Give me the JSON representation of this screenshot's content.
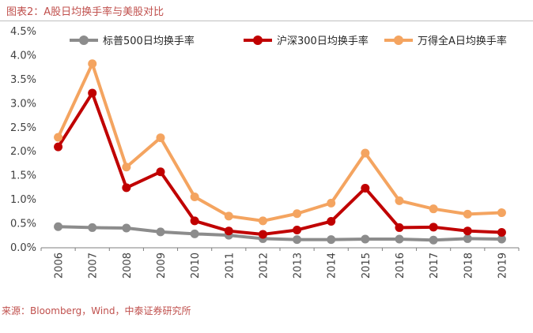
{
  "figure": {
    "title": "图表2：A股日均换手率与美股对比",
    "source": "来源：Bloomberg，Wind，中泰证券研究所"
  },
  "chart_data": {
    "type": "line",
    "title": "",
    "xlabel": "",
    "ylabel": "",
    "x": [
      "2006",
      "2007",
      "2008",
      "2009",
      "2010",
      "2011",
      "2012",
      "2013",
      "2014",
      "2015",
      "2016",
      "2017",
      "2018",
      "2019"
    ],
    "ylim": [
      0,
      4.5
    ],
    "yticks": [
      "0.0%",
      "0.5%",
      "1.0%",
      "1.5%",
      "2.0%",
      "2.5%",
      "3.0%",
      "3.5%",
      "4.0%",
      "4.5%"
    ],
    "yticks_values": [
      0,
      0.5,
      1.0,
      1.5,
      2.0,
      2.5,
      3.0,
      3.5,
      4.0,
      4.5
    ],
    "grid": false,
    "legend_position": "top",
    "series": [
      {
        "name": "标普500日均换手率",
        "color": "#8c8c8c",
        "values": [
          0.44,
          0.42,
          0.41,
          0.33,
          0.29,
          0.26,
          0.19,
          0.17,
          0.17,
          0.18,
          0.18,
          0.16,
          0.19,
          0.18
        ]
      },
      {
        "name": "沪深300日均换手率",
        "color": "#c00000",
        "values": [
          2.1,
          3.22,
          1.25,
          1.58,
          0.56,
          0.35,
          0.28,
          0.37,
          0.55,
          1.24,
          0.42,
          0.43,
          0.35,
          0.32
        ]
      },
      {
        "name": "万得全A日均换手率",
        "color": "#f4a460",
        "values": [
          2.3,
          3.83,
          1.68,
          2.29,
          1.06,
          0.66,
          0.56,
          0.71,
          0.93,
          1.97,
          0.98,
          0.81,
          0.7,
          0.73
        ]
      }
    ]
  }
}
